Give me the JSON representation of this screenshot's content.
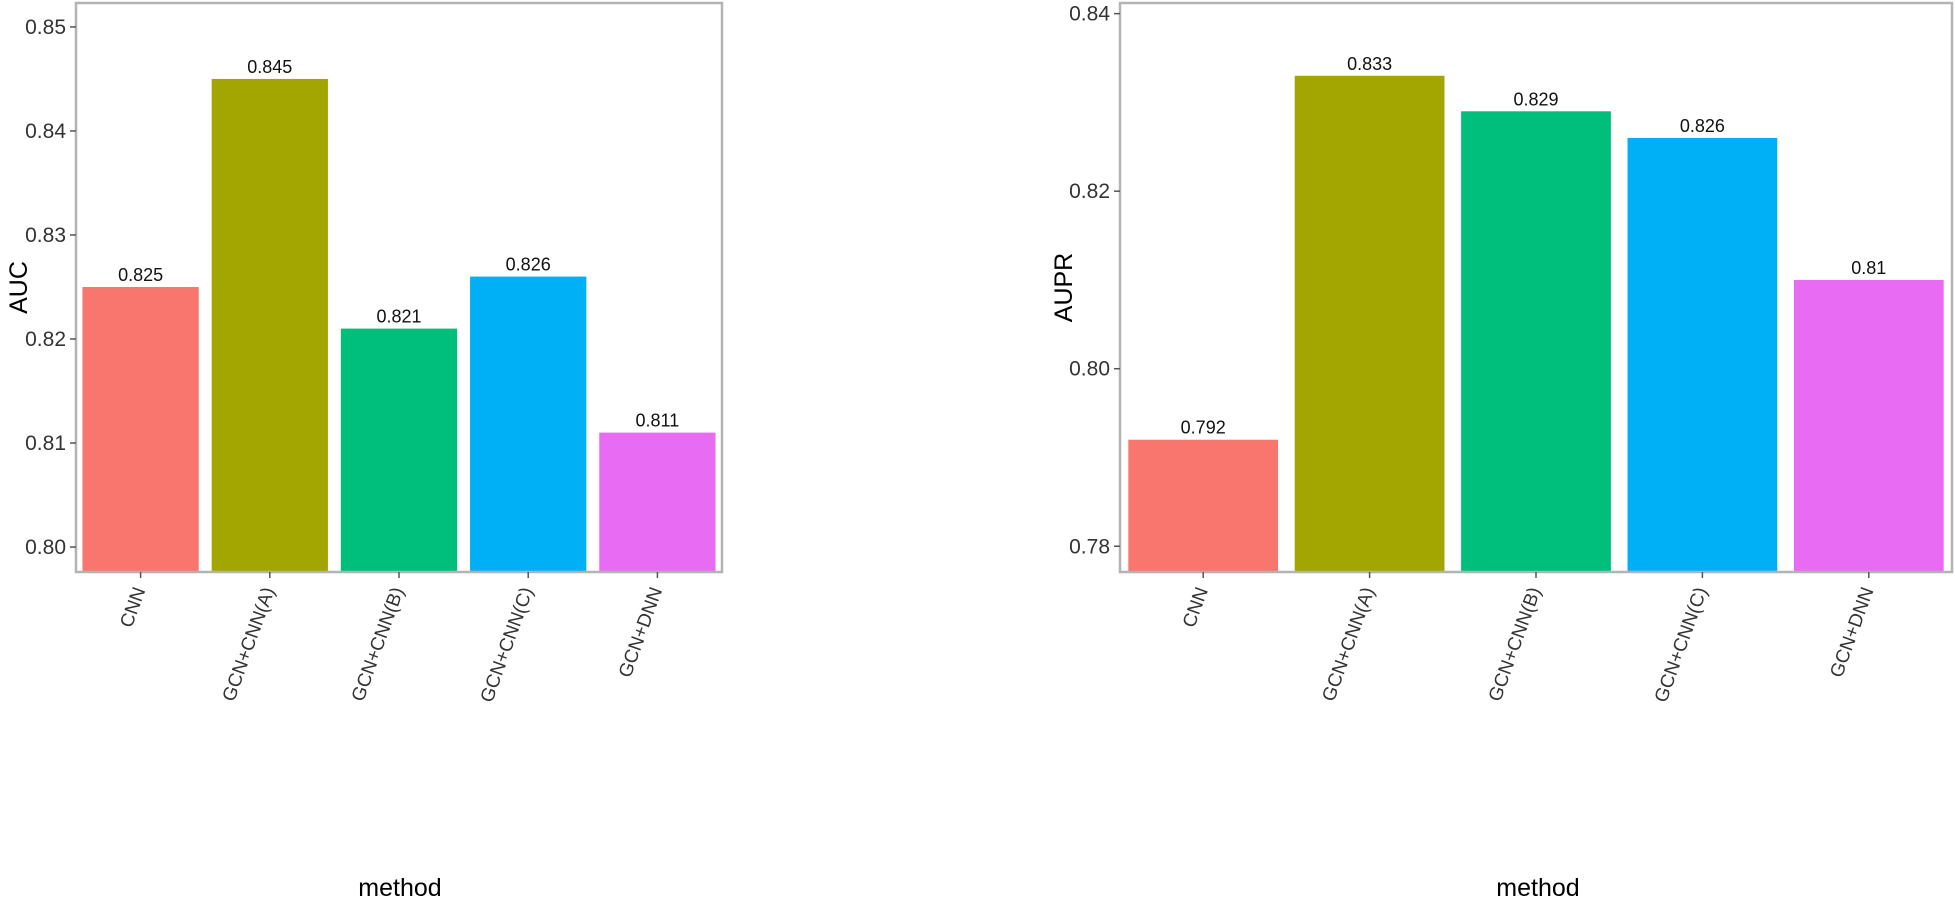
{
  "chart_data": [
    {
      "type": "bar",
      "title": "",
      "xlabel": "method",
      "ylabel": "AUC",
      "ylim": [
        0.7976,
        0.8523
      ],
      "yticks": [
        "0.80",
        "0.81",
        "0.82",
        "0.83",
        "0.84",
        "0.85"
      ],
      "categories": [
        "CNN",
        "GCN+CNN(A)",
        "GCN+CNN(B)",
        "GCN+CNN(C)",
        "GCN+DNN"
      ],
      "values": [
        0.825,
        0.845,
        0.821,
        0.826,
        0.811
      ],
      "value_labels": [
        "0.825",
        "0.845",
        "0.821",
        "0.826",
        "0.811"
      ],
      "colors": [
        "#F8766D",
        "#A3A500",
        "#00BF7D",
        "#00B0F6",
        "#E76BF3"
      ],
      "grid": false,
      "legend": "none"
    },
    {
      "type": "bar",
      "title": "",
      "xlabel": "method",
      "ylabel": "AUPR",
      "ylim": [
        0.7771,
        0.8412
      ],
      "yticks": [
        "0.78",
        "0.80",
        "0.82",
        "0.84"
      ],
      "categories": [
        "CNN",
        "GCN+CNN(A)",
        "GCN+CNN(B)",
        "GCN+CNN(C)",
        "GCN+DNN"
      ],
      "values": [
        0.792,
        0.833,
        0.829,
        0.826,
        0.81
      ],
      "value_labels": [
        "0.792",
        "0.833",
        "0.829",
        "0.826",
        "0.81"
      ],
      "colors": [
        "#F8766D",
        "#A3A500",
        "#00BF7D",
        "#00B0F6",
        "#E76BF3"
      ],
      "grid": false,
      "legend": "none"
    }
  ]
}
